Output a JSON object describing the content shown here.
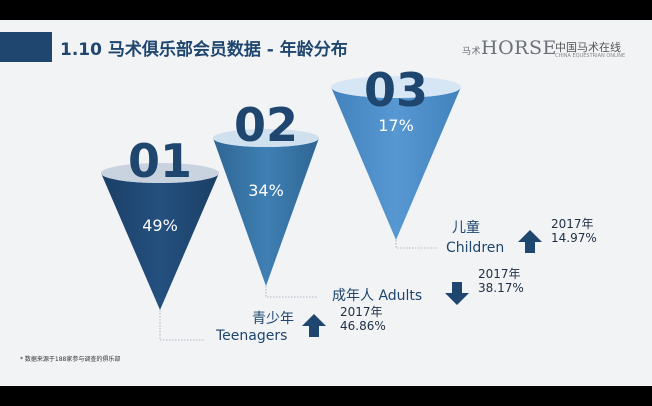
{
  "title": "1.10 马术俱乐部会员数据 - 年龄分布",
  "logo_text": "HORSE",
  "logo_prefix": "马术",
  "logo2_text": "中国马术在线",
  "logo2_sub": "CHINA EQUESTRIAN ONLINE",
  "footnote": "* 数据来源于188家参与调查的俱乐部",
  "colors": {
    "dark": "#1e466e",
    "mid": "#3b76a8",
    "light": "#4f8ec6",
    "background": "#f2f3f5"
  },
  "chart_data": {
    "type": "funnel-cones",
    "items": [
      {
        "rank": "01",
        "percent": "49%",
        "value": 49,
        "label_zh": "青少年",
        "label_en": "Teenagers",
        "compare_year": "2017年",
        "compare_value": "46.86%",
        "trend": "up"
      },
      {
        "rank": "02",
        "percent": "34%",
        "value": 34,
        "label_zh": "成年人",
        "label_en": "Adults",
        "compare_year": "2017年",
        "compare_value": "38.17%",
        "trend": "down"
      },
      {
        "rank": "03",
        "percent": "17%",
        "value": 17,
        "label_zh": "儿童",
        "label_en": "Children",
        "compare_year": "2017年",
        "compare_value": "14.97%",
        "trend": "up"
      }
    ]
  },
  "nav_icons": [
    "arrow-left-icon",
    "pen-icon",
    "slide-icon",
    "arrow-right-icon"
  ]
}
